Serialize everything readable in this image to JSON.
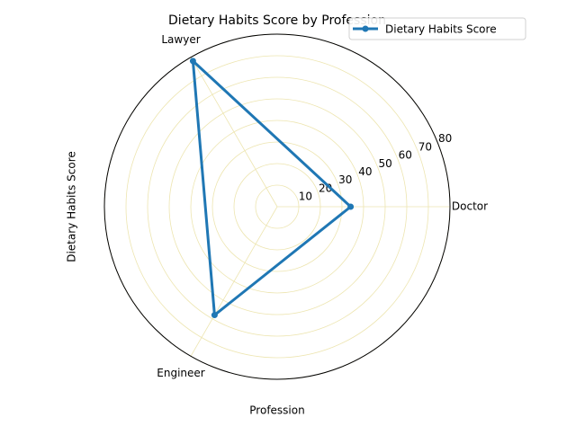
{
  "chart_data": {
    "type": "radar",
    "title": "Dietary Habits Score by Profession",
    "xlabel": "Profession",
    "ylabel": "Dietary Habits Score",
    "categories": [
      "Doctor",
      "Lawyer",
      "Engineer"
    ],
    "series": [
      {
        "name": "Dietary Habits Score",
        "color": "#1f77b4",
        "values": [
          34,
          78,
          58
        ]
      }
    ],
    "rlim": [
      0,
      80
    ],
    "rticks": [
      10,
      20,
      30,
      40,
      50,
      60,
      70,
      80
    ],
    "grid": true,
    "grid_color": "#ede5b0",
    "legend": "upper right"
  }
}
